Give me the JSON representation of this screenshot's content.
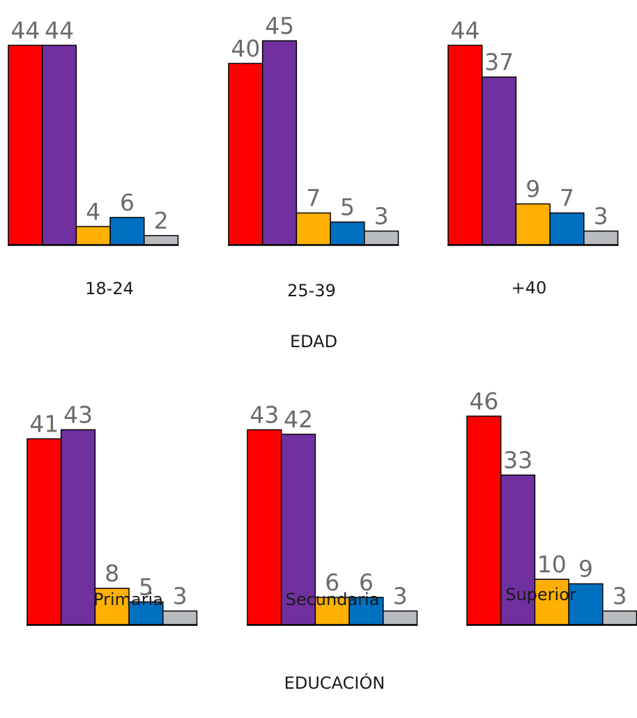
{
  "chart_data": [
    {
      "type": "bar",
      "group_title": "EDAD",
      "bar_colors": [
        "#ff0000",
        "#7030a0",
        "#ffb000",
        "#0070c0",
        "#b8bcc0"
      ],
      "panels": [
        {
          "category": "18-24",
          "values": [
            44,
            44,
            4,
            6,
            2
          ]
        },
        {
          "category": "25-39",
          "values": [
            40,
            45,
            7,
            5,
            3
          ]
        },
        {
          "category": "+40",
          "values": [
            44,
            37,
            9,
            7,
            3
          ]
        }
      ]
    },
    {
      "type": "bar",
      "group_title": "EDUCACIÓN",
      "bar_colors": [
        "#ff0000",
        "#7030a0",
        "#ffb000",
        "#0070c0",
        "#b8bcc0"
      ],
      "panels": [
        {
          "category": "Primaria",
          "values": [
            41,
            43,
            8,
            5,
            3
          ]
        },
        {
          "category": "Secundaria",
          "values": [
            43,
            42,
            6,
            6,
            3
          ]
        },
        {
          "category": "Superior",
          "values": [
            46,
            33,
            10,
            9,
            3
          ]
        }
      ]
    }
  ]
}
